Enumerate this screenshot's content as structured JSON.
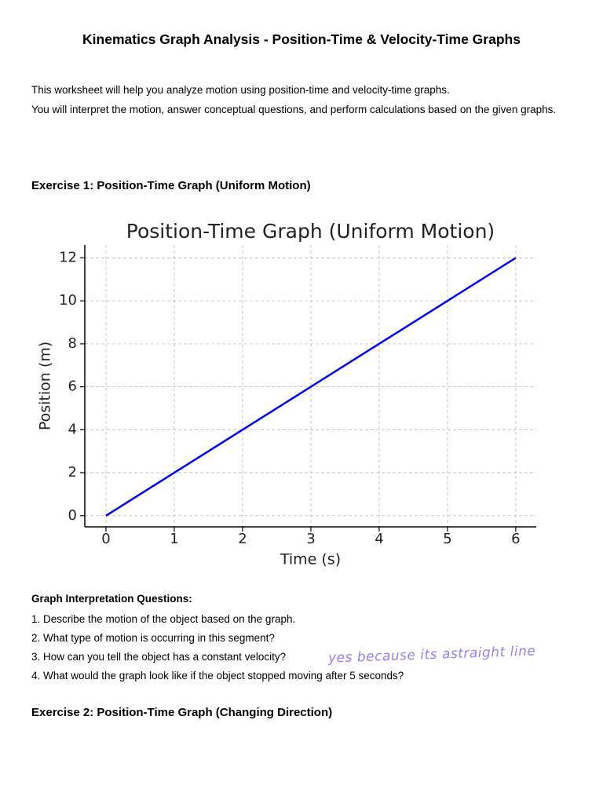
{
  "header": {
    "title": "Kinematics Graph Analysis - Position-Time & Velocity-Time Graphs"
  },
  "intro": [
    "This worksheet will help you analyze motion using position-time and velocity-time graphs.",
    "You will interpret the motion, answer conceptual questions, and perform calculations based on the given graphs."
  ],
  "exercise1": {
    "heading": "Exercise 1: Position-Time Graph (Uniform Motion)"
  },
  "chart_data": {
    "type": "line",
    "title": "Position-Time Graph (Uniform Motion)",
    "x_label": "Time (s)",
    "y_label": "Position (m)",
    "x": [
      0,
      1,
      2,
      3,
      4,
      5,
      6
    ],
    "values": [
      0,
      2,
      4,
      6,
      8,
      10,
      12
    ],
    "color": "#0000ee",
    "xlim": [
      -0.31,
      6.3
    ],
    "ylim": [
      -0.52,
      12.6
    ],
    "xticks": [
      0,
      1,
      2,
      3,
      4,
      5,
      6
    ],
    "yticks": [
      0,
      2,
      4,
      6,
      8,
      10,
      12
    ],
    "grid": true
  },
  "questions": {
    "heading": "Graph Interpretation Questions:",
    "items": [
      "1. Describe the motion of the object based on the graph.",
      "2. What type of motion is occurring in this segment?",
      "3. How can you tell the object has a constant velocity?",
      "4. What would the graph look like if the object stopped moving after 5 seconds?"
    ],
    "answer": "yes because its astraight line"
  },
  "exercise2": {
    "heading": "Exercise 2: Position-Time Graph (Changing Direction)"
  }
}
